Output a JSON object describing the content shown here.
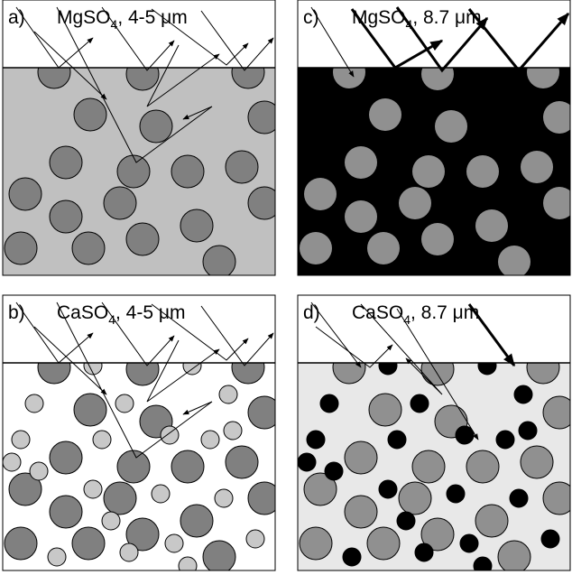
{
  "panels": [
    {
      "label": "a)",
      "formula": "MgSO",
      "subscript": "4",
      "condition": ", 4-5 μm"
    },
    {
      "label": "b)",
      "formula": "CaSO",
      "subscript": "4",
      "condition": ", 4-5 μm"
    },
    {
      "label": "c)",
      "formula": "MgSO",
      "subscript": "4",
      "condition": ", 8.7 μm"
    },
    {
      "label": "d)",
      "formula": "CaSO",
      "subscript": "4",
      "condition": ", 8.7 μm"
    }
  ]
}
